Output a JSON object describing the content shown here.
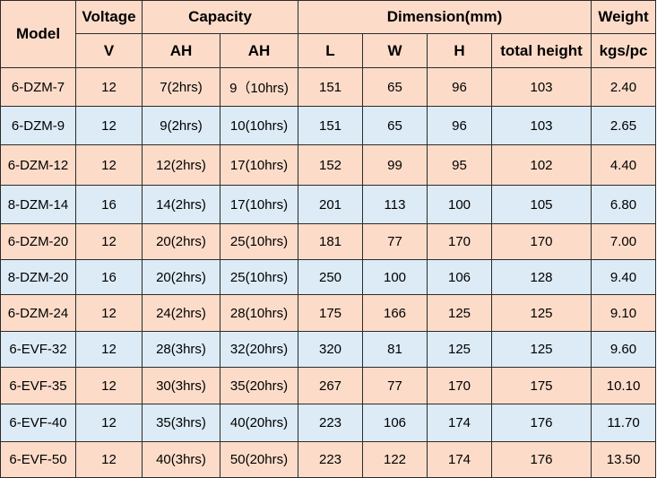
{
  "header": {
    "model": "Model",
    "voltage": "Voltage",
    "capacity": "Capacity",
    "dimension": "Dimension(mm)",
    "weight": "Weight",
    "voltage_unit": "V",
    "capacity_unit_1": "AH",
    "capacity_unit_2": "AH",
    "dim_l": "L",
    "dim_w": "W",
    "dim_h": "H",
    "total_height": "total height",
    "weight_unit": "kgs/pc"
  },
  "colors": {
    "pink_row": "#fcdcc9",
    "blue_row": "#dcebf6",
    "border": "#2b2b2b"
  },
  "rows": [
    [
      "6-DZM-7",
      "12",
      "7(2hrs)",
      "9（10hrs)",
      "151",
      "65",
      "96",
      "103",
      "2.40"
    ],
    [
      "6-DZM-9",
      "12",
      "9(2hrs)",
      "10(10hrs)",
      "151",
      "65",
      "96",
      "103",
      "2.65"
    ],
    [
      "6-DZM-12",
      "12",
      "12(2hrs)",
      "17(10hrs)",
      "152",
      "99",
      "95",
      "102",
      "4.40"
    ],
    [
      "8-DZM-14",
      "16",
      "14(2hrs)",
      "17(10hrs)",
      "201",
      "113",
      "100",
      "105",
      "6.80"
    ],
    [
      "6-DZM-20",
      "12",
      "20(2hrs)",
      "25(10hrs)",
      "181",
      "77",
      "170",
      "170",
      "7.00"
    ],
    [
      "8-DZM-20",
      "16",
      "20(2hrs)",
      "25(10hrs)",
      "250",
      "100",
      "106",
      "128",
      "9.40"
    ],
    [
      "6-DZM-24",
      "12",
      "24(2hrs)",
      "28(10hrs)",
      "175",
      "166",
      "125",
      "125",
      "9.10"
    ],
    [
      "6-EVF-32",
      "12",
      "28(3hrs)",
      "32(20hrs)",
      "320",
      "81",
      "125",
      "125",
      "9.60"
    ],
    [
      "6-EVF-35",
      "12",
      "30(3hrs)",
      "35(20hrs)",
      "267",
      "77",
      "170",
      "175",
      "10.10"
    ],
    [
      "6-EVF-40",
      "12",
      "35(3hrs)",
      "40(20hrs)",
      "223",
      "106",
      "174",
      "176",
      "11.70"
    ],
    [
      "6-EVF-50",
      "12",
      "40(3hrs)",
      "50(20hrs)",
      "223",
      "122",
      "174",
      "176",
      "13.50"
    ]
  ]
}
